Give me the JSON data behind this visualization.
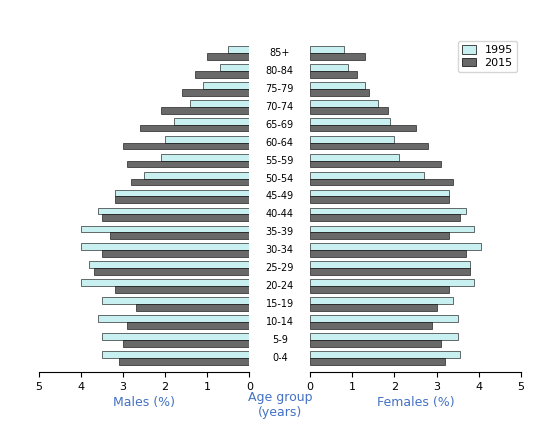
{
  "age_groups": [
    "0-4",
    "5-9",
    "10-14",
    "15-19",
    "20-24",
    "25-29",
    "30-34",
    "35-39",
    "40-44",
    "45-49",
    "50-54",
    "55-59",
    "60-64",
    "65-69",
    "70-74",
    "75-79",
    "80-84",
    "85+"
  ],
  "males_1995": [
    3.5,
    3.5,
    3.6,
    3.5,
    4.0,
    3.8,
    4.0,
    4.0,
    3.6,
    3.2,
    2.5,
    2.1,
    2.0,
    1.8,
    1.4,
    1.1,
    0.7,
    0.5
  ],
  "males_2015": [
    3.1,
    3.0,
    2.9,
    2.7,
    3.2,
    3.7,
    3.5,
    3.3,
    3.5,
    3.2,
    2.8,
    2.9,
    3.0,
    2.6,
    2.1,
    1.6,
    1.3,
    1.0
  ],
  "females_1995": [
    3.55,
    3.5,
    3.5,
    3.4,
    3.9,
    3.8,
    4.05,
    3.9,
    3.7,
    3.3,
    2.7,
    2.1,
    2.0,
    1.9,
    1.6,
    1.3,
    0.9,
    0.8
  ],
  "females_2015": [
    3.2,
    3.1,
    2.9,
    3.0,
    3.3,
    3.8,
    3.7,
    3.3,
    3.55,
    3.3,
    3.4,
    3.1,
    2.8,
    2.5,
    1.85,
    1.4,
    1.1,
    1.3
  ],
  "color_1995": "#c8f0f0",
  "color_2015": "#696969",
  "xlabel_left": "Males (%)",
  "xlabel_right": "Females (%)",
  "xlabel_center": "Age group\n(years)",
  "legend_labels": [
    "1995",
    "2015"
  ],
  "xlim": 5,
  "bar_height": 0.38,
  "label_color": "#4472c4"
}
